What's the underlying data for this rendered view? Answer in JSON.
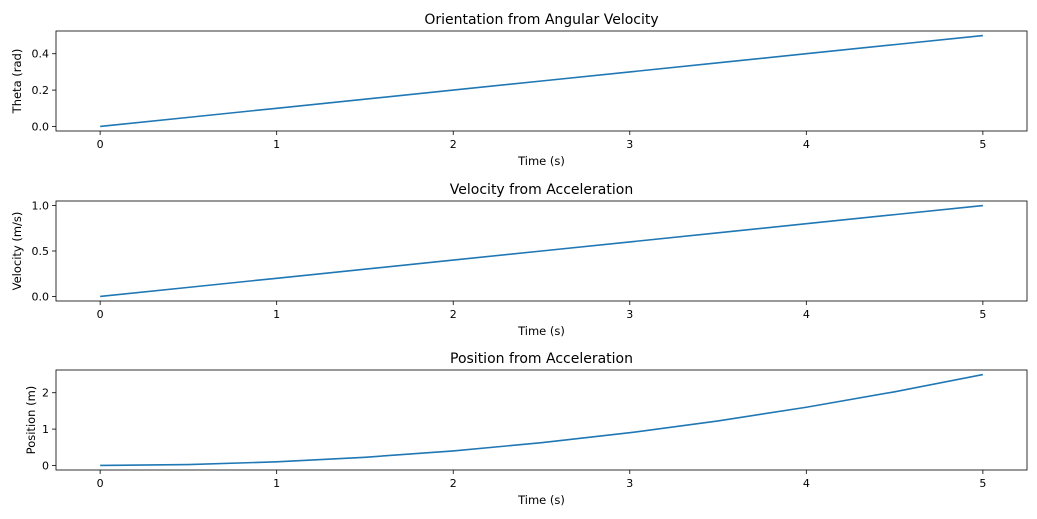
{
  "chart_data": [
    {
      "type": "line",
      "title": "Orientation from Angular Velocity",
      "xlabel": "Time (s)",
      "ylabel": "Theta (rad)",
      "xlim": [
        -0.25,
        5.25
      ],
      "ylim": [
        -0.025,
        0.525
      ],
      "xticks": [
        0,
        1,
        2,
        3,
        4,
        5
      ],
      "xtick_labels": [
        "0",
        "1",
        "2",
        "3",
        "4",
        "5"
      ],
      "yticks": [
        0.0,
        0.2,
        0.4
      ],
      "ytick_labels": [
        "0.0",
        "0.2",
        "0.4"
      ],
      "grid": false,
      "line_color": "#1f77b4",
      "x": [
        0,
        0.5,
        1,
        1.5,
        2,
        2.5,
        3,
        3.5,
        4,
        4.5,
        5
      ],
      "y": [
        0,
        0.05,
        0.1,
        0.15,
        0.2,
        0.25,
        0.3,
        0.35,
        0.4,
        0.45,
        0.5
      ]
    },
    {
      "type": "line",
      "title": "Velocity from Acceleration",
      "xlabel": "Time (s)",
      "ylabel": "Velocity (m/s)",
      "xlim": [
        -0.25,
        5.25
      ],
      "ylim": [
        -0.05,
        1.05
      ],
      "xticks": [
        0,
        1,
        2,
        3,
        4,
        5
      ],
      "xtick_labels": [
        "0",
        "1",
        "2",
        "3",
        "4",
        "5"
      ],
      "yticks": [
        0.0,
        0.5,
        1.0
      ],
      "ytick_labels": [
        "0.0",
        "0.5",
        "1.0"
      ],
      "grid": false,
      "line_color": "#1f77b4",
      "x": [
        0,
        0.5,
        1,
        1.5,
        2,
        2.5,
        3,
        3.5,
        4,
        4.5,
        5
      ],
      "y": [
        0,
        0.1,
        0.2,
        0.3,
        0.4,
        0.5,
        0.6,
        0.7,
        0.8,
        0.9,
        1.0
      ]
    },
    {
      "type": "line",
      "title": "Position from Acceleration",
      "xlabel": "Time (s)",
      "ylabel": "Position (m)",
      "xlim": [
        -0.25,
        5.25
      ],
      "ylim": [
        -0.125,
        2.625
      ],
      "xticks": [
        0,
        1,
        2,
        3,
        4,
        5
      ],
      "xtick_labels": [
        "0",
        "1",
        "2",
        "3",
        "4",
        "5"
      ],
      "yticks": [
        0,
        1,
        2
      ],
      "ytick_labels": [
        "0",
        "1",
        "2"
      ],
      "grid": false,
      "line_color": "#1f77b4",
      "x": [
        0,
        0.5,
        1,
        1.5,
        2,
        2.5,
        3,
        3.5,
        4,
        4.5,
        5
      ],
      "y": [
        0,
        0.025,
        0.1,
        0.225,
        0.4,
        0.625,
        0.9,
        1.225,
        1.6,
        2.025,
        2.5
      ]
    }
  ]
}
